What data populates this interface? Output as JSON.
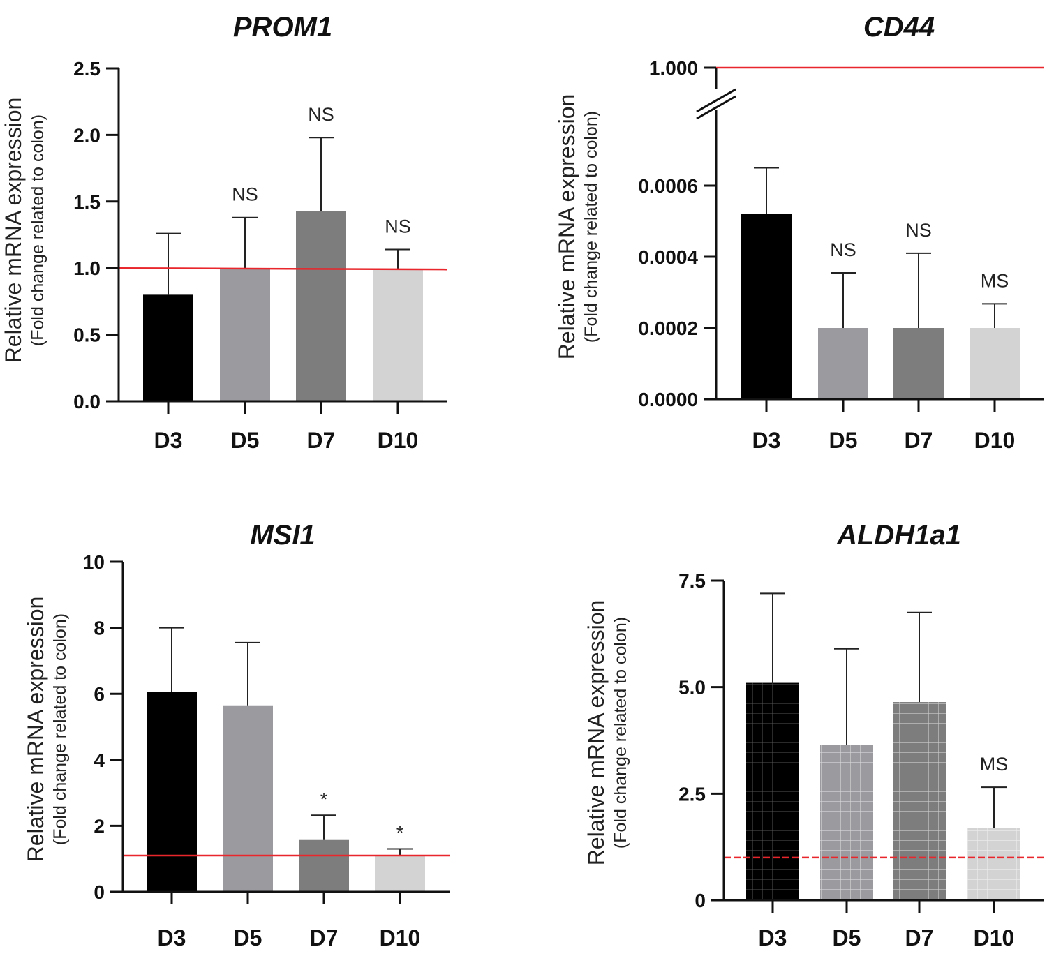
{
  "chart_data": [
    {
      "type": "bar",
      "title": "PROM1",
      "ylabel": "Relative mRNA expression",
      "ylabel_sub": "(Fold change related to colon)",
      "categories": [
        "D3",
        "D5",
        "D7",
        "D10"
      ],
      "values": [
        0.8,
        1.0,
        1.43,
        0.99
      ],
      "errors": [
        0.46,
        0.38,
        0.55,
        0.15
      ],
      "annotations": [
        "",
        "NS",
        "NS",
        "NS"
      ],
      "colors": [
        "#000000",
        "#9b9b9f",
        "#7d7d7d",
        "#d3d3d3"
      ],
      "reference_line": 1.0,
      "reference_color": "#e8262b",
      "ylim": [
        0,
        2.5
      ],
      "yticks": [
        "0.0",
        "0.5",
        "1.0",
        "1.5",
        "2.0",
        "2.5"
      ],
      "grid": false,
      "legend": "none"
    },
    {
      "type": "bar",
      "title": "CD44",
      "ylabel": "Relative mRNA expression",
      "ylabel_sub": "(Fold change related to colon)",
      "categories": [
        "D3",
        "D5",
        "D7",
        "D10"
      ],
      "values": [
        0.00052,
        0.0002,
        0.0002,
        0.0002
      ],
      "errors": [
        0.00013,
        0.000155,
        0.00021,
        6.8e-05
      ],
      "annotations": [
        "",
        "NS",
        "NS",
        "MS"
      ],
      "colors": [
        "#000000",
        "#9b9b9f",
        "#7d7d7d",
        "#d3d3d3"
      ],
      "reference_line": 1.0,
      "reference_color": "#e8262b",
      "ylim": [
        0,
        0.0007
      ],
      "axis_break": [
        0.0007,
        1.0
      ],
      "yticks": [
        "0.0000",
        "0.0002",
        "0.0004",
        "0.0006",
        "1.000"
      ],
      "grid": false,
      "legend": "none"
    },
    {
      "type": "bar",
      "title": "MSI1",
      "ylabel": "Relative mRNA expression",
      "ylabel_sub": "(Fold change related to colon)",
      "categories": [
        "D3",
        "D5",
        "D7",
        "D10"
      ],
      "values": [
        6.05,
        5.65,
        1.57,
        1.1
      ],
      "errors": [
        1.95,
        1.9,
        0.75,
        0.2
      ],
      "annotations": [
        "",
        "",
        "*",
        "*"
      ],
      "colors": [
        "#000000",
        "#9b9b9f",
        "#7d7d7d",
        "#d3d3d3"
      ],
      "reference_line": 1.1,
      "reference_color": "#e8262b",
      "ylim": [
        0,
        10
      ],
      "yticks": [
        "0",
        "2",
        "4",
        "6",
        "8",
        "10"
      ],
      "grid": false,
      "legend": "none"
    },
    {
      "type": "bar",
      "title": "ALDH1a1",
      "ylabel": "Relative mRNA expression",
      "ylabel_sub": "(Fold change related to colon)",
      "categories": [
        "D3",
        "D5",
        "D7",
        "D10"
      ],
      "values": [
        5.1,
        3.65,
        4.65,
        1.7
      ],
      "errors": [
        2.1,
        2.25,
        2.1,
        0.95
      ],
      "annotations": [
        "",
        "",
        "",
        "MS"
      ],
      "colors": [
        "#000000",
        "#9b9b9f",
        "#7d7d7d",
        "#d3d3d3"
      ],
      "pattern": "grid",
      "reference_line": 1.0,
      "reference_color": "#e8262b",
      "reference_style": "dashed",
      "ylim": [
        0,
        7.5
      ],
      "yticks": [
        "0",
        "2.5",
        "5.0",
        "7.5"
      ],
      "grid": false,
      "legend": "none"
    }
  ]
}
